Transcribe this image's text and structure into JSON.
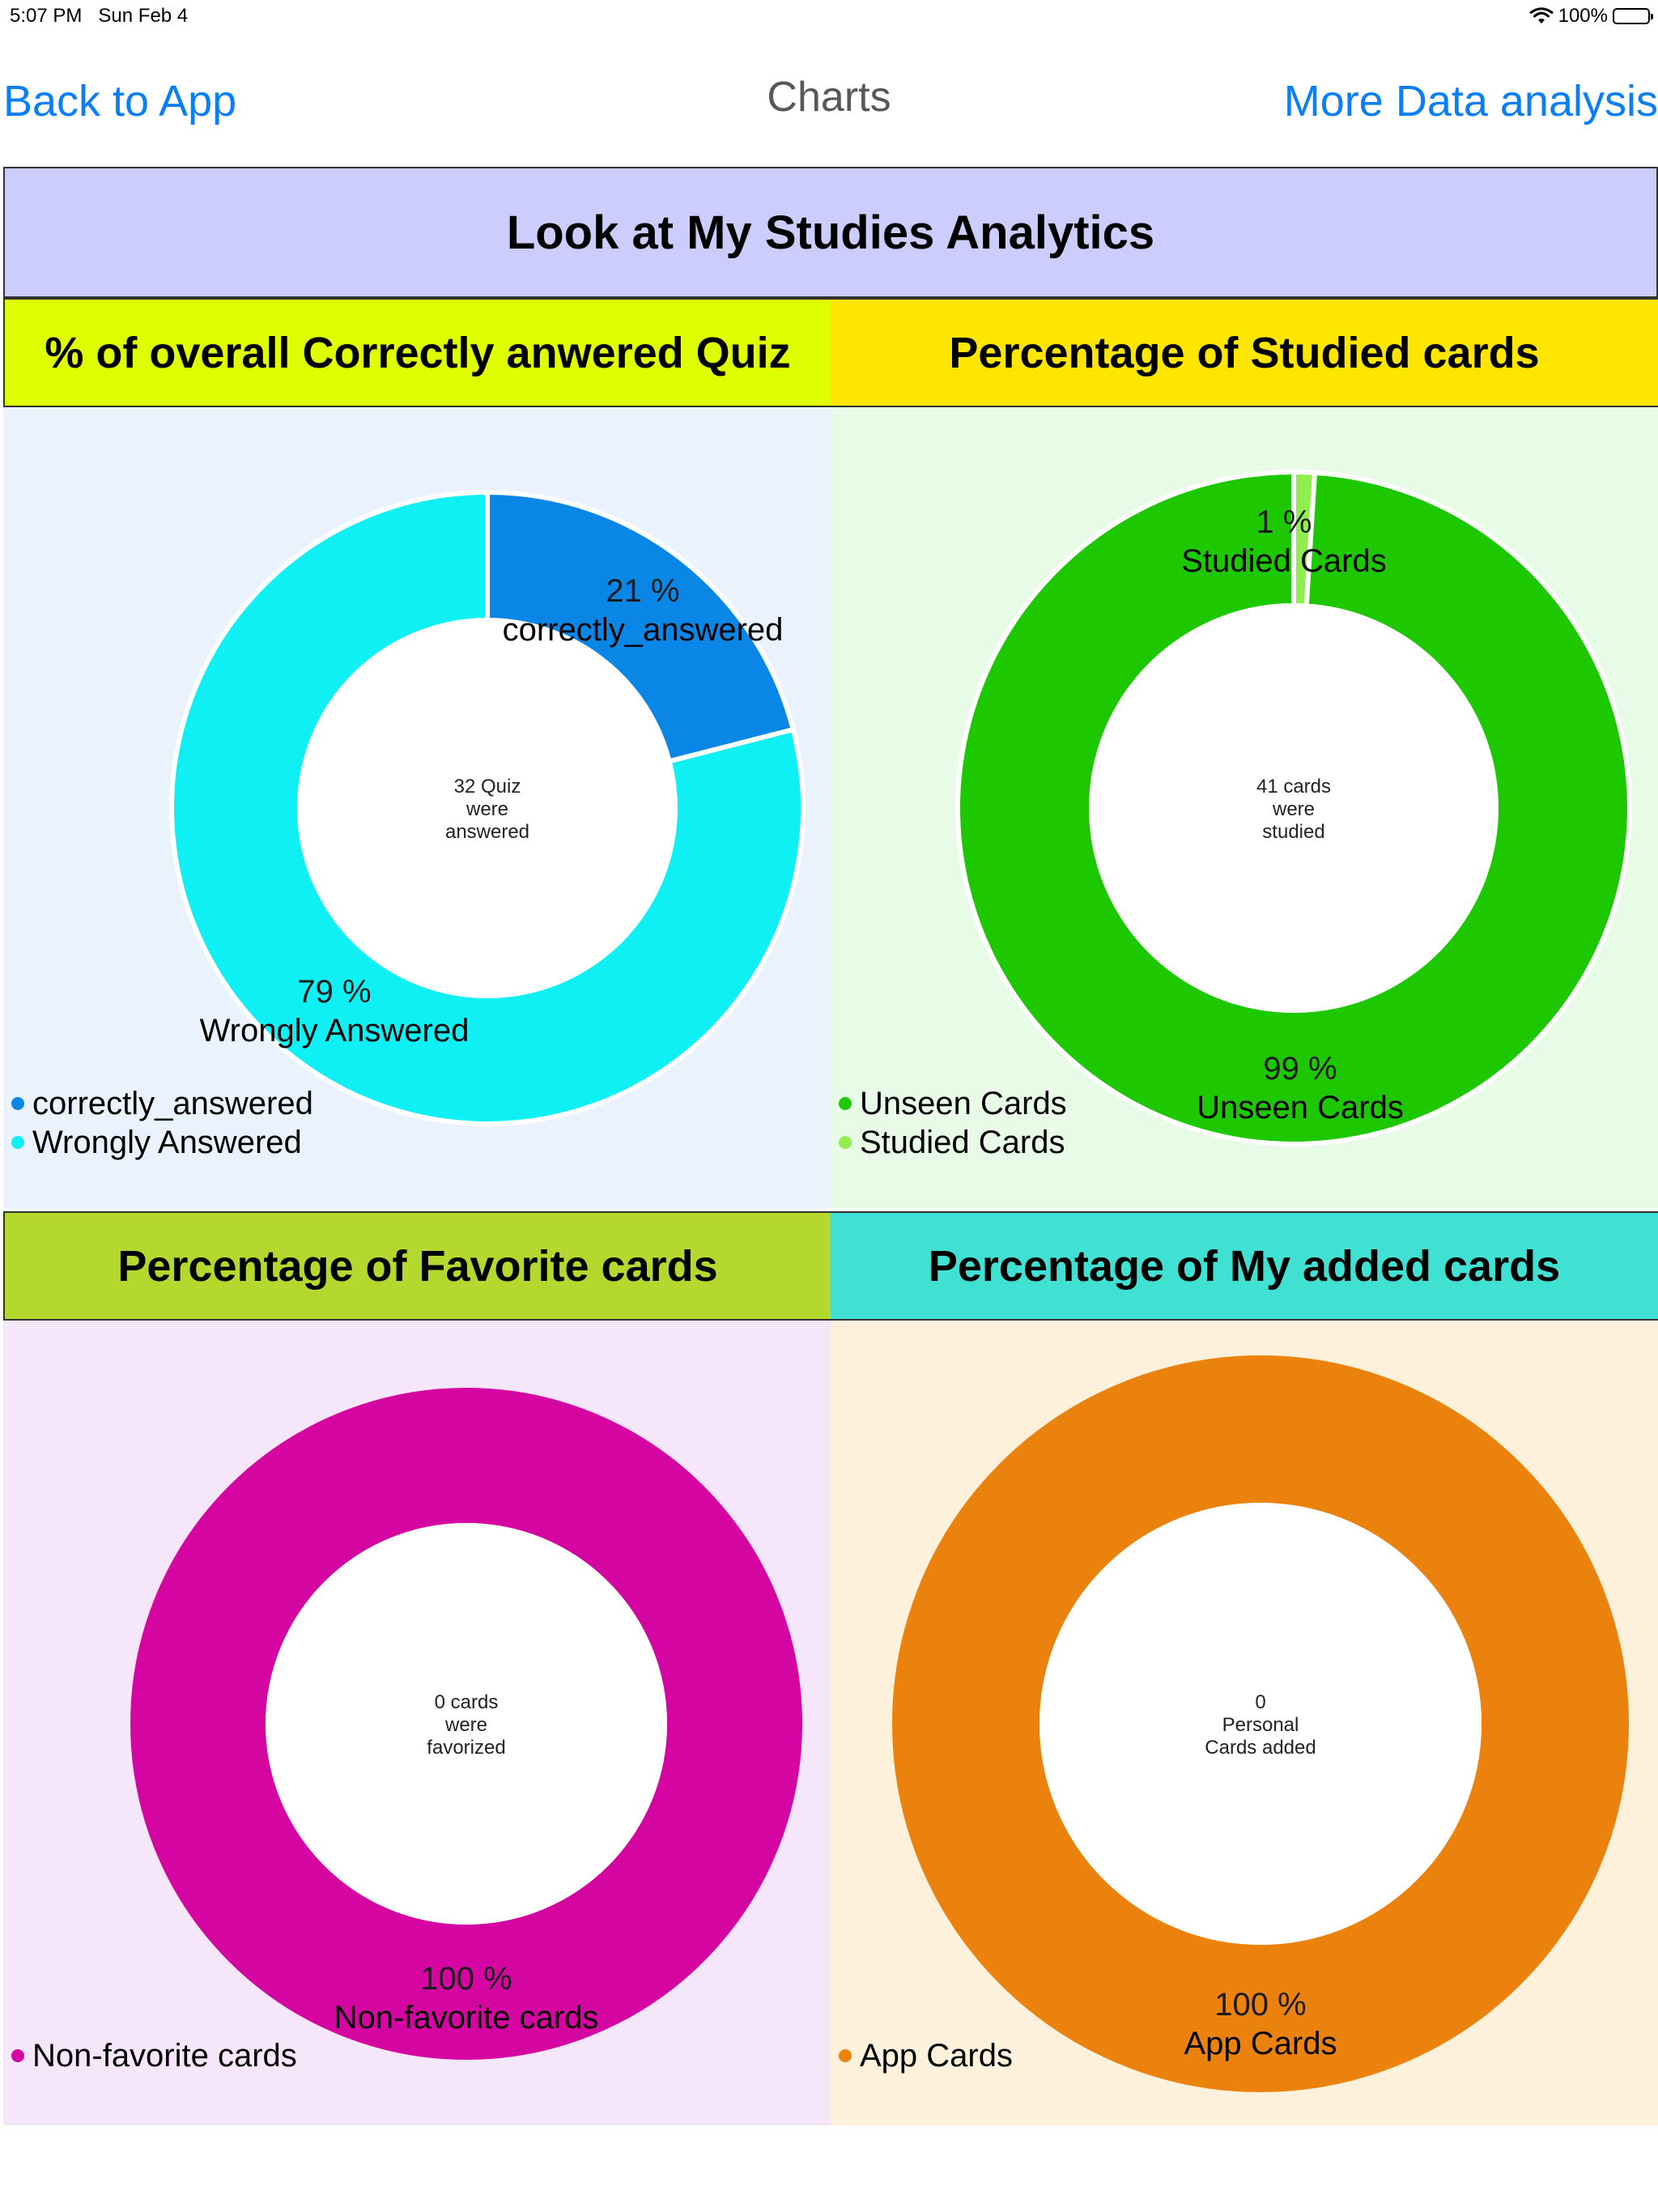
{
  "status": {
    "time": "5:07 PM",
    "date": "Sun Feb 4",
    "battery": "100%"
  },
  "nav": {
    "back_label": "Back to App",
    "title": "Charts",
    "more_label": "More Data analysis"
  },
  "banner": {
    "title": "Look at My Studies Analytics",
    "color": "#cdcdfd"
  },
  "chart_data": [
    {
      "type": "pie",
      "title": "% of overall Correctly anwered Quiz",
      "header_color": "#dfff00",
      "bg_color": "#eaf3fd",
      "center_lines": [
        "32 Quiz",
        "were",
        "answered"
      ],
      "slices": [
        {
          "label": "correctly_answered",
          "value": 21,
          "pct_text": "21 %",
          "color": "#0a87e6"
        },
        {
          "label": "Wrongly Answered",
          "value": 79,
          "pct_text": "79 %",
          "color": "#0ff0f5"
        }
      ],
      "legend": [
        "correctly_answered",
        "Wrongly Answered"
      ],
      "legend_placement": "bottom-left"
    },
    {
      "type": "pie",
      "title": "Percentage of  Studied cards",
      "header_color": "#ffe600",
      "bg_color": "#e8fbe6",
      "center_lines": [
        "41 cards",
        "were",
        "studied"
      ],
      "slices": [
        {
          "label": "Studied Cards",
          "value": 1,
          "pct_text": "1 %",
          "color": "#90ee4f"
        },
        {
          "label": "Unseen Cards",
          "value": 99,
          "pct_text": "99 %",
          "color": "#1ec800"
        }
      ],
      "legend": [
        "Unseen Cards",
        "Studied Cards"
      ],
      "legend_colors": [
        "#1ec800",
        "#90ee4f"
      ],
      "legend_placement": "bottom-left"
    },
    {
      "type": "pie",
      "title": "Percentage of  Favorite cards",
      "header_color": "#b4d82e",
      "bg_color": "#f6e6fa",
      "center_lines": [
        "0 cards",
        "were",
        "favorized"
      ],
      "slices": [
        {
          "label": "Non-favorite cards",
          "value": 100,
          "pct_text": "100 %",
          "color": "#d405a0"
        }
      ],
      "legend": [
        "Non-favorite cards"
      ],
      "legend_placement": "bottom-left"
    },
    {
      "type": "pie",
      "title": "Percentage of  My added cards",
      "header_color": "#40e0d2",
      "bg_color": "#fdf1dc",
      "center_lines": [
        "0",
        "Personal",
        "Cards added"
      ],
      "slices": [
        {
          "label": "App Cards",
          "value": 100,
          "pct_text": "100 %",
          "color": "#ec820e"
        }
      ],
      "legend": [
        "App Cards"
      ],
      "legend_placement": "bottom-left"
    }
  ]
}
